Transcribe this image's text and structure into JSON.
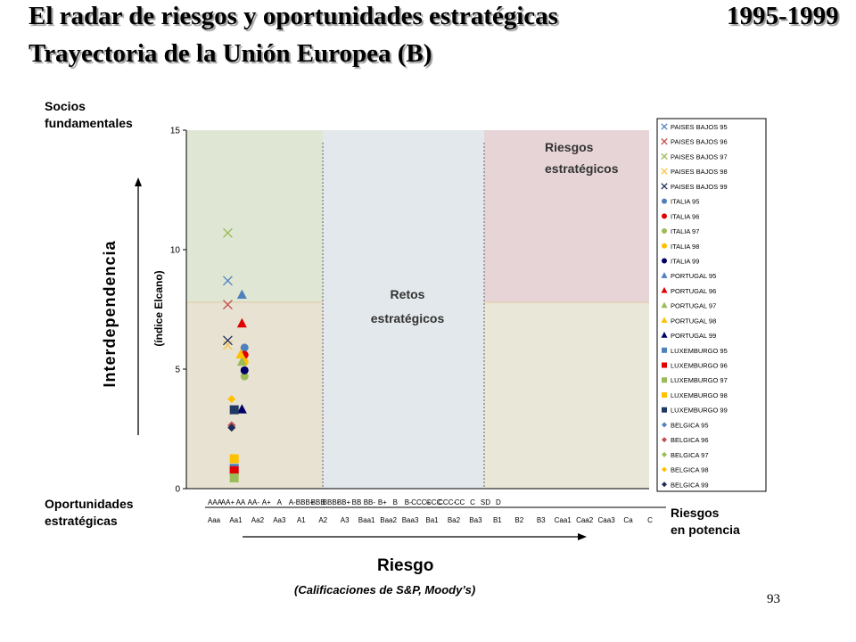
{
  "slide": {
    "title_line1": "El radar de riesgos y oportunidades estratégicas",
    "title_line2": "Trayectoria de la Unión Europea (B)",
    "period": "1995-1999",
    "page_number": "93"
  },
  "labels": {
    "socios": "Socios\nfundamentales",
    "interdependencia": "Interdependencia",
    "indice": "(índice Elcano)",
    "oportunidades": "Oportunidades\nestratégicas",
    "riesgo": "Riesgo",
    "calificaciones": "(Calificaciones de S&P, Moody’s)",
    "riesgos_potencia": "Riesgos\nen potencia",
    "retos": "Retos\nestratégicos",
    "riesgos_estrategicos": "Riesgos\nestratégicos"
  },
  "colors": {
    "zone_socios": "#dfe6d4",
    "zone_oportunidades": "#e8e2d2",
    "zone_retos": "#e2e8eb",
    "zone_riesgos": "#e6d4d7",
    "zone_potencia": "#e9e7d8"
  },
  "chart_data": {
    "type": "scatter",
    "ylim": [
      0,
      15
    ],
    "yticks": [
      0,
      5,
      10,
      15
    ],
    "x_labels_sp": [
      "AAA",
      "AA+",
      "AA",
      "AA-",
      "A+",
      "A",
      "A-",
      "BBB+",
      "BBB",
      "BBB-",
      "BB+",
      "BB",
      "BB-",
      "B+",
      "B",
      "B-",
      "CCC+",
      "CCC",
      "CCC-",
      "CC",
      "C",
      "SD",
      "D"
    ],
    "x_labels_moodys": [
      "Aaa",
      "Aa1",
      "Aa2",
      "Aa3",
      "A1",
      "A2",
      "A3",
      "Baa1",
      "Baa2",
      "Baa3",
      "Ba1",
      "Ba2",
      "Ba3",
      "B1",
      "B2",
      "B3",
      "Caa1",
      "Caa2",
      "Caa3",
      "Ca",
      "C"
    ],
    "series": [
      {
        "name": "PAISES BAJOS 95",
        "color": "#4f81bd",
        "marker": "x",
        "points": [
          [
            1,
            8.7
          ]
        ]
      },
      {
        "name": "PAISES BAJOS 96",
        "color": "#c0504d",
        "marker": "x",
        "points": [
          [
            1,
            7.7
          ]
        ]
      },
      {
        "name": "PAISES BAJOS 97",
        "color": "#9bbb59",
        "marker": "x",
        "points": [
          [
            1,
            10.7
          ]
        ]
      },
      {
        "name": "PAISES BAJOS 98",
        "color": "#f8c44a",
        "marker": "x",
        "points": [
          [
            1,
            6.0
          ]
        ]
      },
      {
        "name": "PAISES BAJOS 99",
        "color": "#1f2d5a",
        "marker": "x",
        "points": [
          [
            1,
            6.2
          ]
        ]
      },
      {
        "name": "ITALIA 95",
        "color": "#4f81bd",
        "marker": "circle",
        "points": [
          [
            2.3,
            5.9
          ]
        ]
      },
      {
        "name": "ITALIA 96",
        "color": "#e00000",
        "marker": "circle",
        "points": [
          [
            2.3,
            5.6
          ]
        ]
      },
      {
        "name": "ITALIA 97",
        "color": "#9bbb59",
        "marker": "circle",
        "points": [
          [
            2.3,
            4.7
          ]
        ]
      },
      {
        "name": "ITALIA 98",
        "color": "#ffc000",
        "marker": "circle",
        "points": [
          [
            2.3,
            5.3
          ]
        ]
      },
      {
        "name": "ITALIA 99",
        "color": "#000066",
        "marker": "circle",
        "points": [
          [
            2.3,
            4.95
          ]
        ]
      },
      {
        "name": "PORTUGAL 95",
        "color": "#4f81bd",
        "marker": "triangle",
        "points": [
          [
            2.1,
            8.1
          ]
        ]
      },
      {
        "name": "PORTUGAL 96",
        "color": "#e00000",
        "marker": "triangle",
        "points": [
          [
            2.1,
            6.9
          ]
        ]
      },
      {
        "name": "PORTUGAL 97",
        "color": "#9bbb59",
        "marker": "triangle",
        "points": [
          [
            2.1,
            5.3
          ]
        ]
      },
      {
        "name": "PORTUGAL 98",
        "color": "#ffc000",
        "marker": "triangle",
        "points": [
          [
            2.0,
            5.6
          ]
        ]
      },
      {
        "name": "PORTUGAL 99",
        "color": "#000066",
        "marker": "triangle",
        "points": [
          [
            2.1,
            3.3
          ]
        ]
      },
      {
        "name": "LUXEMBURGO 95",
        "color": "#4f81bd",
        "marker": "square",
        "points": [
          [
            1.5,
            0.85
          ]
        ]
      },
      {
        "name": "LUXEMBURGO 96",
        "color": "#e00000",
        "marker": "square",
        "points": [
          [
            1.5,
            0.75
          ]
        ]
      },
      {
        "name": "LUXEMBURGO 97",
        "color": "#9bbb59",
        "marker": "square",
        "points": [
          [
            1.5,
            0.45
          ]
        ]
      },
      {
        "name": "LUXEMBURGO 98",
        "color": "#ffc000",
        "marker": "square",
        "points": [
          [
            1.5,
            1.25
          ]
        ]
      },
      {
        "name": "LUXEMBURGO 99",
        "color": "#1f3864",
        "marker": "square",
        "points": [
          [
            1.5,
            3.3
          ]
        ]
      },
      {
        "name": "BELGICA 95",
        "color": "#4f81bd",
        "marker": "diamond",
        "points": [
          [
            1.3,
            2.65
          ]
        ]
      },
      {
        "name": "BELGICA 96",
        "color": "#c0504d",
        "marker": "diamond",
        "points": [
          [
            1.3,
            2.65
          ]
        ]
      },
      {
        "name": "BELGICA 97",
        "color": "#9bbb59",
        "marker": "diamond",
        "points": [
          [
            1.3,
            2.55
          ]
        ]
      },
      {
        "name": "BELGICA 98",
        "color": "#ffc000",
        "marker": "diamond",
        "points": [
          [
            1.3,
            3.75
          ]
        ]
      },
      {
        "name": "BELGICA 99",
        "color": "#1f2d5a",
        "marker": "diamond",
        "points": [
          [
            1.3,
            2.55
          ]
        ]
      }
    ]
  }
}
